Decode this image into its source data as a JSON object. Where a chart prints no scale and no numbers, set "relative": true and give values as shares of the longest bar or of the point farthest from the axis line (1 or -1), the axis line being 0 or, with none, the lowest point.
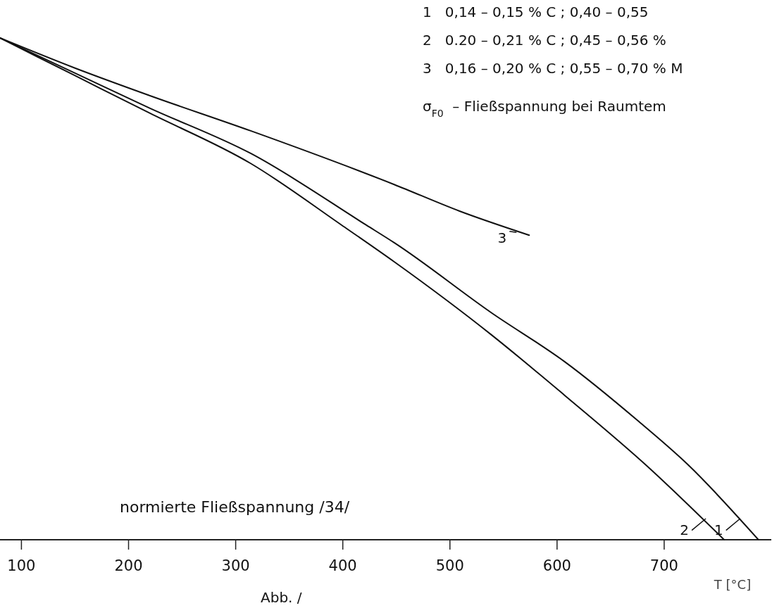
{
  "chart_data": {
    "type": "line",
    "relative": true,
    "xlabel": "T [°C]",
    "xlim": [
      80,
      800
    ],
    "xticks": [
      100,
      200,
      300,
      400,
      500,
      600,
      700
    ],
    "legend": "bottom right",
    "grid": false,
    "marker": "none",
    "line_style": "solid",
    "annotations": [
      "1   0,14 – 0,15 % C ; 0,40 – 0,55",
      "2   0.20 – 0,21 % C ; 0,45 – 0,56 %",
      "3   0,16 – 0,20 % C ; 0,55 – 0,70 % M",
      "σ$_{F0}$ – Fließspannung bei Raumtem",
      "normierte Fließspannung /34/",
      "Abb. /"
    ],
    "series": [
      {
        "name": "1",
        "color": "#111111",
        "x": [
          80,
          150,
          220,
          314,
          422,
          448,
          539,
          607,
          675,
          722,
          788
        ],
        "values": [
          1.0,
          0.93,
          0.86,
          0.77,
          0.627,
          0.592,
          0.452,
          0.355,
          0.238,
          0.15,
          0
        ]
      },
      {
        "name": "2",
        "color": "#111111",
        "x": [
          80,
          150,
          220,
          314,
          399,
          448,
          539,
          607,
          684,
          756
        ],
        "values": [
          1.0,
          0.925,
          0.85,
          0.75,
          0.627,
          0.554,
          0.408,
          0.288,
          0.147,
          0
        ]
      },
      {
        "name": "3",
        "color": "#111111",
        "x": [
          80,
          150,
          220,
          314,
          448,
          509,
          574
        ],
        "values": [
          1.0,
          0.94,
          0.885,
          0.815,
          0.708,
          0.655,
          0.607
        ]
      }
    ]
  }
}
